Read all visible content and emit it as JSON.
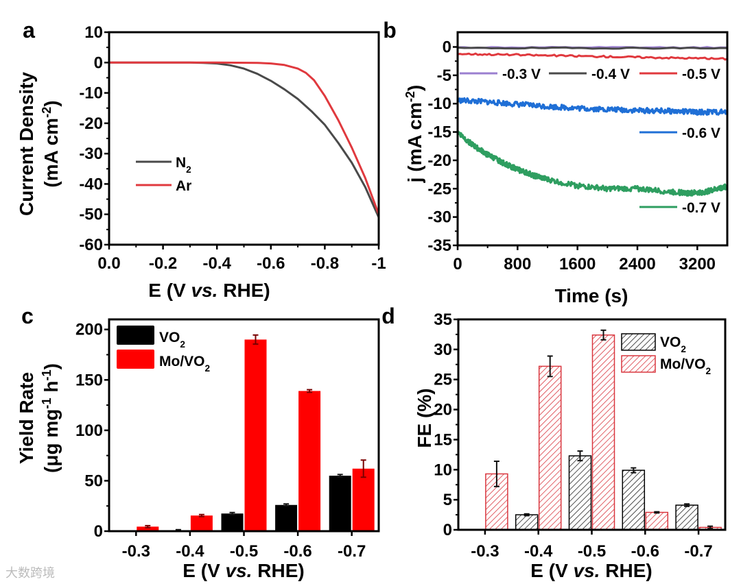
{
  "watermark": "大数跨境",
  "chart_data": [
    {
      "panel": "a",
      "type": "line",
      "xlabel": [
        {
          "t": "E (V "
        },
        {
          "t": "vs.",
          "s": "i"
        },
        {
          "t": " RHE)"
        }
      ],
      "ylabel": [
        [
          {
            "t": "Current Density"
          }
        ],
        [
          {
            "t": "(mA cm"
          },
          {
            "t": "-2",
            "s": "sup"
          },
          {
            "t": ")"
          }
        ]
      ],
      "xlim": [
        0,
        -1
      ],
      "ylim": [
        -60,
        10
      ],
      "xticks": [
        0,
        -0.2,
        -0.4,
        -0.6,
        -0.8,
        -1
      ],
      "xtick_labels": [
        "0.0",
        "-0.2",
        "-0.4",
        "-0.6",
        "-0.8",
        "-1"
      ],
      "yticks": [
        10,
        0,
        -10,
        -20,
        -30,
        -40,
        -50,
        -60
      ],
      "ytick_labels": [
        "10",
        "0",
        "-10",
        "-20",
        "-30",
        "-40",
        "-50",
        "-60"
      ],
      "legend_position": "center-left",
      "series": [
        {
          "name": [
            {
              "t": "N"
            },
            {
              "t": "2",
              "s": "sub"
            }
          ],
          "color": "#4a4a4a",
          "x": [
            0,
            -0.1,
            -0.2,
            -0.3,
            -0.35,
            -0.4,
            -0.45,
            -0.5,
            -0.55,
            -0.6,
            -0.65,
            -0.7,
            -0.75,
            -0.8,
            -0.85,
            -0.9,
            -0.95,
            -1.0
          ],
          "y": [
            0,
            0,
            0,
            0,
            -0.1,
            -0.3,
            -0.9,
            -2,
            -3.7,
            -6,
            -8.8,
            -12,
            -16,
            -20.5,
            -26.5,
            -33,
            -41,
            -51
          ]
        },
        {
          "name": [
            {
              "t": "Ar"
            }
          ],
          "color": "#e0393e",
          "x": [
            0,
            -0.2,
            -0.4,
            -0.55,
            -0.6,
            -0.65,
            -0.7,
            -0.73,
            -0.76,
            -0.8,
            -0.85,
            -0.9,
            -0.95,
            -1.0
          ],
          "y": [
            0,
            0,
            0,
            -0.1,
            -0.3,
            -0.8,
            -2,
            -3.4,
            -5.8,
            -11,
            -19,
            -28,
            -38,
            -50
          ]
        }
      ]
    },
    {
      "panel": "b",
      "type": "line",
      "xlabel": [
        {
          "t": "Time (s)"
        }
      ],
      "ylabel": [
        [
          {
            "t": "j (mA cm"
          },
          {
            "t": "-2",
            "s": "sup"
          },
          {
            "t": ")"
          }
        ]
      ],
      "xlim": [
        0,
        3600
      ],
      "ylim": [
        -35,
        2.6
      ],
      "xticks": [
        0,
        800,
        1600,
        2400,
        3200
      ],
      "xtick_labels": [
        "0",
        "800",
        "1600",
        "2400",
        "3200"
      ],
      "yticks": [
        0,
        -5,
        -10,
        -15,
        -20,
        -25,
        -30,
        -35
      ],
      "ytick_labels": [
        "0",
        "-5",
        "-10",
        "-15",
        "-20",
        "-25",
        "-30",
        "-35"
      ],
      "legend_position": "inline",
      "series": [
        {
          "name": [
            {
              "t": "-0.3 V"
            }
          ],
          "color": "#9b7fd0",
          "x": [
            0,
            3600
          ],
          "y": [
            -0.1,
            -0.1
          ],
          "noise": 0.1
        },
        {
          "name": [
            {
              "t": "-0.4 V"
            }
          ],
          "color": "#4a4a4a",
          "x": [
            0,
            3600
          ],
          "y": [
            -0.2,
            -0.2
          ],
          "noise": 0.1
        },
        {
          "name": [
            {
              "t": "-0.5 V"
            }
          ],
          "color": "#e0393e",
          "x": [
            0,
            1200,
            2400,
            3600
          ],
          "y": [
            -1.2,
            -1.5,
            -1.8,
            -2.1
          ],
          "noise": 0.15
        },
        {
          "name": [
            {
              "t": "-0.6 V"
            }
          ],
          "color": "#1f6fd6",
          "x": [
            0,
            400,
            800,
            1200,
            1600,
            2000,
            2400,
            2800,
            3200,
            3600
          ],
          "y": [
            -9.4,
            -9.7,
            -10.1,
            -10.5,
            -10.8,
            -11.0,
            -11.2,
            -11.3,
            -11.5,
            -11.5
          ],
          "noise": 0.45
        },
        {
          "name": [
            {
              "t": "-0.7 V"
            }
          ],
          "color": "#2e9e60",
          "x": [
            0,
            200,
            400,
            600,
            800,
            1000,
            1200,
            1600,
            2000,
            2400,
            2800,
            3100,
            3300,
            3500,
            3600
          ],
          "y": [
            -15,
            -17.3,
            -19,
            -20.4,
            -21.6,
            -22.6,
            -23.4,
            -24.5,
            -25,
            -25,
            -25.5,
            -25.8,
            -25.6,
            -24.9,
            -24.6
          ],
          "noise": 0.45
        }
      ]
    },
    {
      "panel": "c",
      "type": "bar",
      "xlabel": [
        {
          "t": "E (V "
        },
        {
          "t": "vs.",
          "s": "i"
        },
        {
          "t": " RHE)"
        }
      ],
      "ylabel": [
        [
          {
            "t": "Yield Rate"
          }
        ],
        [
          {
            "t": "(μg mg"
          },
          {
            "t": "-1",
            "s": "sup"
          },
          {
            "t": " h"
          },
          {
            "t": "-1",
            "s": "sup"
          },
          {
            "t": ")"
          }
        ]
      ],
      "categories": [
        "-0.3",
        "-0.4",
        "-0.5",
        "-0.6",
        "-0.7"
      ],
      "ylim": [
        0,
        210
      ],
      "yticks": [
        0,
        50,
        100,
        150,
        200
      ],
      "ytick_labels": [
        "0",
        "50",
        "100",
        "150",
        "200"
      ],
      "legend_position": "top-left",
      "series": [
        {
          "name": [
            {
              "t": "VO"
            },
            {
              "t": "2",
              "s": "sub"
            }
          ],
          "color": "#000000",
          "values": [
            0,
            1,
            17.5,
            26,
            55
          ],
          "errors": [
            0,
            0.5,
            1,
            1,
            1.2
          ]
        },
        {
          "name": [
            {
              "t": "Mo/VO"
            },
            {
              "t": "2",
              "s": "sub"
            }
          ],
          "color": "#ff0000",
          "values": [
            4.5,
            15.5,
            190,
            139,
            62
          ],
          "errors": [
            1,
            1,
            4.5,
            1.3,
            8.5
          ]
        }
      ]
    },
    {
      "panel": "d",
      "type": "bar",
      "xlabel": [
        {
          "t": "E (V "
        },
        {
          "t": "vs.",
          "s": "i"
        },
        {
          "t": " RHE)"
        }
      ],
      "ylabel": [
        [
          {
            "t": "FE (%)"
          }
        ]
      ],
      "categories": [
        "-0.3",
        "-0.4",
        "-0.5",
        "-0.6",
        "-0.7"
      ],
      "ylim": [
        0,
        35
      ],
      "yticks": [
        0,
        5,
        10,
        15,
        20,
        25,
        30,
        35
      ],
      "ytick_labels": [
        "0",
        "5",
        "10",
        "15",
        "20",
        "25",
        "30",
        "35"
      ],
      "legend_position": "top-right",
      "series": [
        {
          "name": [
            {
              "t": "VO"
            },
            {
              "t": "2",
              "s": "sub"
            }
          ],
          "color": "#000000",
          "hatched": true,
          "values": [
            0,
            2.5,
            12.3,
            9.9,
            4.1
          ],
          "errors": [
            0,
            0.15,
            0.8,
            0.4,
            0.2
          ]
        },
        {
          "name": [
            {
              "t": "Mo/VO"
            },
            {
              "t": "2",
              "s": "sub"
            }
          ],
          "color": "#d9363e",
          "hatched": true,
          "values": [
            9.3,
            27.2,
            32.4,
            2.9,
            0.4
          ],
          "errors": [
            2.1,
            1.7,
            0.8,
            0.1,
            0.2
          ]
        }
      ]
    }
  ]
}
